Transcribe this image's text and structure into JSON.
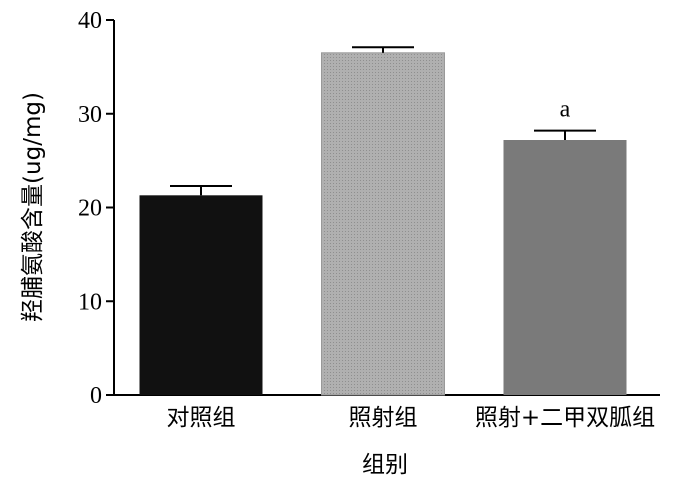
{
  "chart_data": {
    "type": "bar",
    "categories": [
      "对照组",
      "照射组",
      "照射+二甲双胍组"
    ],
    "values": [
      21.3,
      36.5,
      27.2
    ],
    "errors": [
      1.0,
      0.6,
      1.0
    ],
    "annotations": [
      "",
      "",
      "a"
    ],
    "colors": [
      "#111111",
      "#a9a9a9",
      "#7a7a7a"
    ],
    "xlabel": "组别",
    "ylabel": "羟脯氨酸含量(ug/mg)",
    "ylim": [
      0,
      40
    ],
    "yticks": [
      0,
      10,
      20,
      30,
      40
    ],
    "grid": false,
    "legend": "none"
  }
}
